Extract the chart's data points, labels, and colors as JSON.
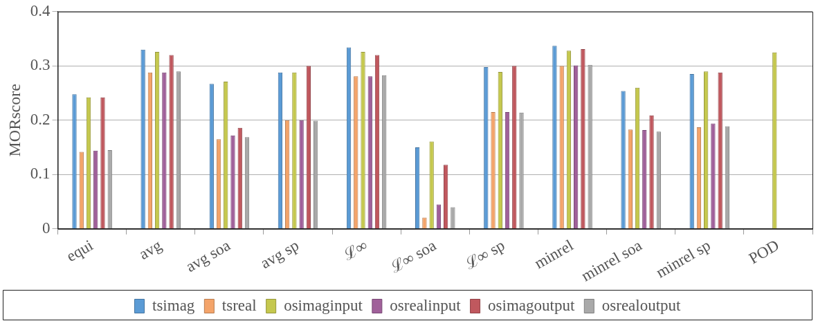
{
  "chart_data": {
    "type": "bar",
    "ylabel": "MORscore",
    "categories": [
      "equi",
      "avg",
      "avg soa",
      "avg sp",
      "ℒ∞",
      "ℒ∞ soa",
      "ℒ∞ sp",
      "minrel",
      "minrel soa",
      "minrel sp",
      "POD"
    ],
    "series": [
      {
        "name": "tsimag",
        "color": "#5b9bd5",
        "values": [
          0.248,
          0.33,
          0.267,
          0.288,
          0.334,
          0.15,
          0.298,
          0.337,
          0.254,
          0.285,
          0
        ]
      },
      {
        "name": "tsreal",
        "color": "#f4a46a",
        "values": [
          0.142,
          0.288,
          0.165,
          0.2,
          0.281,
          0.021,
          0.215,
          0.3,
          0.183,
          0.187,
          0
        ]
      },
      {
        "name": "osimaginput",
        "color": "#c5c84e",
        "values": [
          0.242,
          0.326,
          0.271,
          0.288,
          0.326,
          0.161,
          0.289,
          0.328,
          0.26,
          0.29,
          0.325
        ]
      },
      {
        "name": "osrealinput",
        "color": "#a0609a",
        "values": [
          0.144,
          0.288,
          0.172,
          0.2,
          0.281,
          0.045,
          0.215,
          0.301,
          0.182,
          0.194,
          0
        ]
      },
      {
        "name": "osimagoutput",
        "color": "#c0585e",
        "values": [
          0.242,
          0.32,
          0.186,
          0.3,
          0.32,
          0.118,
          0.3,
          0.331,
          0.209,
          0.288,
          0
        ]
      },
      {
        "name": "osrealoutput",
        "color": "#a9a9a9",
        "values": [
          0.145,
          0.29,
          0.169,
          0.199,
          0.283,
          0.04,
          0.214,
          0.302,
          0.179,
          0.189,
          0
        ]
      }
    ],
    "ylim": [
      0,
      0.4
    ],
    "yticks": [
      0,
      0.1,
      0.2,
      0.3,
      0.4
    ],
    "grid": "y",
    "legend": "bottom"
  }
}
